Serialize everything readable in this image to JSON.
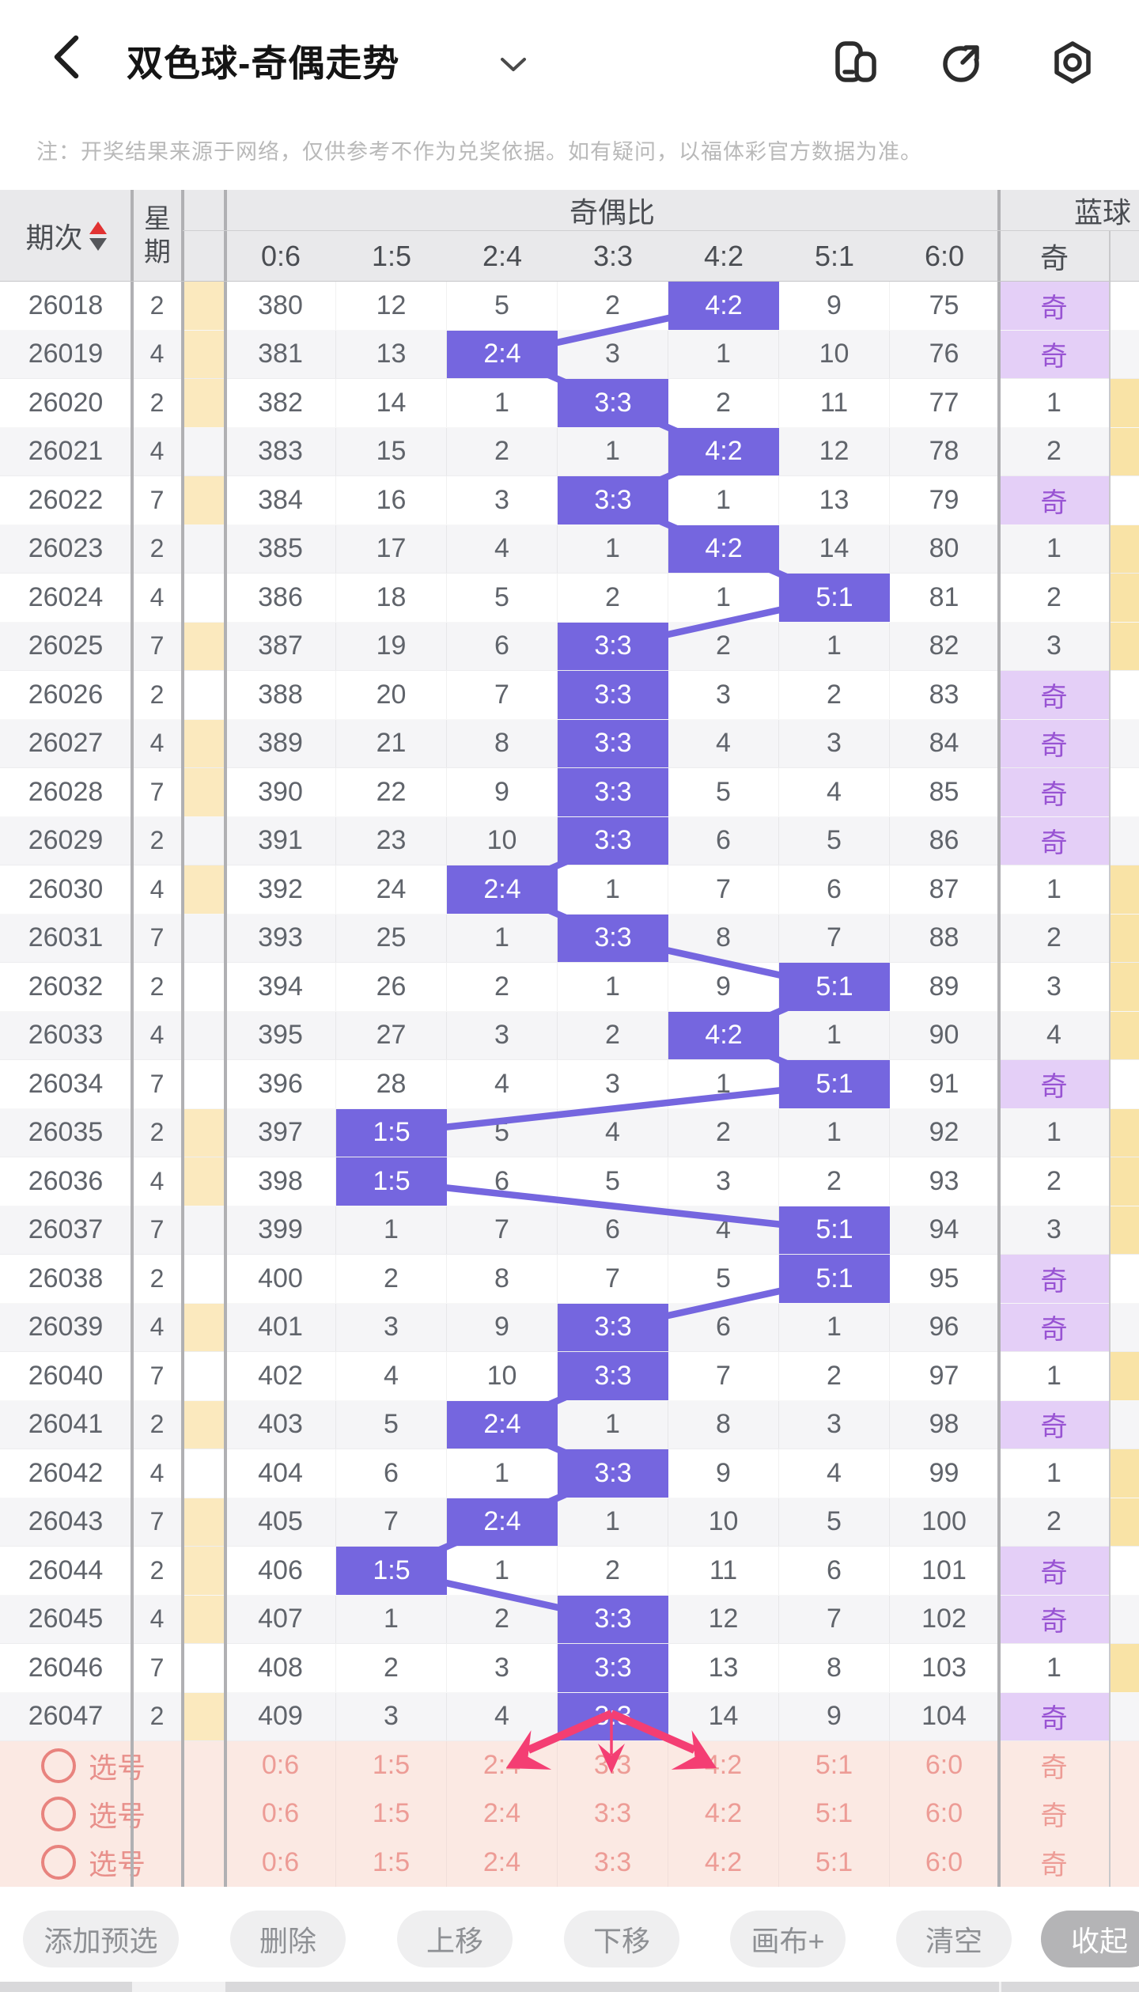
{
  "nav": {
    "title": "双色球-奇偶走势"
  },
  "notice": "注：开奖结果来源于网络，仅供参考不作为兑奖依据。如有疑问，以福体彩官方数据为准。",
  "table": {
    "headers": {
      "period": "期次",
      "week": "星期",
      "ratio_group": "奇偶比",
      "blue_group": "蓝球",
      "ratio_cols": [
        "0:6",
        "1:5",
        "2:4",
        "3:3",
        "4:2",
        "5:1",
        "6:0"
      ],
      "blue_odd": "奇"
    },
    "rows": [
      {
        "period": "26018",
        "week": "2",
        "marker": true,
        "cells": [
          "380",
          "12",
          "5",
          "2",
          "4:2",
          "9",
          "75"
        ],
        "hl": 4,
        "blue": "奇"
      },
      {
        "period": "26019",
        "week": "4",
        "marker": true,
        "cells": [
          "381",
          "13",
          "2:4",
          "3",
          "1",
          "10",
          "76"
        ],
        "hl": 2,
        "blue": "奇"
      },
      {
        "period": "26020",
        "week": "2",
        "marker": true,
        "cells": [
          "382",
          "14",
          "1",
          "3:3",
          "2",
          "11",
          "77"
        ],
        "hl": 3,
        "blue": "1"
      },
      {
        "period": "26021",
        "week": "4",
        "marker": false,
        "cells": [
          "383",
          "15",
          "2",
          "1",
          "4:2",
          "12",
          "78"
        ],
        "hl": 4,
        "blue": "2"
      },
      {
        "period": "26022",
        "week": "7",
        "marker": true,
        "cells": [
          "384",
          "16",
          "3",
          "3:3",
          "1",
          "13",
          "79"
        ],
        "hl": 3,
        "blue": "奇"
      },
      {
        "period": "26023",
        "week": "2",
        "marker": false,
        "cells": [
          "385",
          "17",
          "4",
          "1",
          "4:2",
          "14",
          "80"
        ],
        "hl": 4,
        "blue": "1"
      },
      {
        "period": "26024",
        "week": "4",
        "marker": false,
        "cells": [
          "386",
          "18",
          "5",
          "2",
          "1",
          "5:1",
          "81"
        ],
        "hl": 5,
        "blue": "2"
      },
      {
        "period": "26025",
        "week": "7",
        "marker": true,
        "cells": [
          "387",
          "19",
          "6",
          "3:3",
          "2",
          "1",
          "82"
        ],
        "hl": 3,
        "blue": "3"
      },
      {
        "period": "26026",
        "week": "2",
        "marker": false,
        "cells": [
          "388",
          "20",
          "7",
          "3:3",
          "3",
          "2",
          "83"
        ],
        "hl": 3,
        "blue": "奇"
      },
      {
        "period": "26027",
        "week": "4",
        "marker": true,
        "cells": [
          "389",
          "21",
          "8",
          "3:3",
          "4",
          "3",
          "84"
        ],
        "hl": 3,
        "blue": "奇"
      },
      {
        "period": "26028",
        "week": "7",
        "marker": true,
        "cells": [
          "390",
          "22",
          "9",
          "3:3",
          "5",
          "4",
          "85"
        ],
        "hl": 3,
        "blue": "奇"
      },
      {
        "period": "26029",
        "week": "2",
        "marker": false,
        "cells": [
          "391",
          "23",
          "10",
          "3:3",
          "6",
          "5",
          "86"
        ],
        "hl": 3,
        "blue": "奇"
      },
      {
        "period": "26030",
        "week": "4",
        "marker": true,
        "cells": [
          "392",
          "24",
          "2:4",
          "1",
          "7",
          "6",
          "87"
        ],
        "hl": 2,
        "blue": "1"
      },
      {
        "period": "26031",
        "week": "7",
        "marker": false,
        "cells": [
          "393",
          "25",
          "1",
          "3:3",
          "8",
          "7",
          "88"
        ],
        "hl": 3,
        "blue": "2"
      },
      {
        "period": "26032",
        "week": "2",
        "marker": false,
        "cells": [
          "394",
          "26",
          "2",
          "1",
          "9",
          "5:1",
          "89"
        ],
        "hl": 5,
        "blue": "3"
      },
      {
        "period": "26033",
        "week": "4",
        "marker": false,
        "cells": [
          "395",
          "27",
          "3",
          "2",
          "4:2",
          "1",
          "90"
        ],
        "hl": 4,
        "blue": "4"
      },
      {
        "period": "26034",
        "week": "7",
        "marker": false,
        "cells": [
          "396",
          "28",
          "4",
          "3",
          "1",
          "5:1",
          "91"
        ],
        "hl": 5,
        "blue": "奇"
      },
      {
        "period": "26035",
        "week": "2",
        "marker": true,
        "cells": [
          "397",
          "1:5",
          "5",
          "4",
          "2",
          "1",
          "92"
        ],
        "hl": 1,
        "blue": "1"
      },
      {
        "period": "26036",
        "week": "4",
        "marker": true,
        "cells": [
          "398",
          "1:5",
          "6",
          "5",
          "3",
          "2",
          "93"
        ],
        "hl": 1,
        "blue": "2"
      },
      {
        "period": "26037",
        "week": "7",
        "marker": false,
        "cells": [
          "399",
          "1",
          "7",
          "6",
          "4",
          "5:1",
          "94"
        ],
        "hl": 5,
        "blue": "3"
      },
      {
        "period": "26038",
        "week": "2",
        "marker": false,
        "cells": [
          "400",
          "2",
          "8",
          "7",
          "5",
          "5:1",
          "95"
        ],
        "hl": 5,
        "blue": "奇"
      },
      {
        "period": "26039",
        "week": "4",
        "marker": true,
        "cells": [
          "401",
          "3",
          "9",
          "3:3",
          "6",
          "1",
          "96"
        ],
        "hl": 3,
        "blue": "奇"
      },
      {
        "period": "26040",
        "week": "7",
        "marker": false,
        "cells": [
          "402",
          "4",
          "10",
          "3:3",
          "7",
          "2",
          "97"
        ],
        "hl": 3,
        "blue": "1"
      },
      {
        "period": "26041",
        "week": "2",
        "marker": true,
        "cells": [
          "403",
          "5",
          "2:4",
          "1",
          "8",
          "3",
          "98"
        ],
        "hl": 2,
        "blue": "奇"
      },
      {
        "period": "26042",
        "week": "4",
        "marker": false,
        "cells": [
          "404",
          "6",
          "1",
          "3:3",
          "9",
          "4",
          "99"
        ],
        "hl": 3,
        "blue": "1"
      },
      {
        "period": "26043",
        "week": "7",
        "marker": true,
        "cells": [
          "405",
          "7",
          "2:4",
          "1",
          "10",
          "5",
          "100"
        ],
        "hl": 2,
        "blue": "2"
      },
      {
        "period": "26044",
        "week": "2",
        "marker": true,
        "cells": [
          "406",
          "1:5",
          "1",
          "2",
          "11",
          "6",
          "101"
        ],
        "hl": 1,
        "blue": "奇"
      },
      {
        "period": "26045",
        "week": "4",
        "marker": true,
        "cells": [
          "407",
          "1",
          "2",
          "3:3",
          "12",
          "7",
          "102"
        ],
        "hl": 3,
        "blue": "奇"
      },
      {
        "period": "26046",
        "week": "7",
        "marker": false,
        "cells": [
          "408",
          "2",
          "3",
          "3:3",
          "13",
          "8",
          "103"
        ],
        "hl": 3,
        "blue": "1"
      },
      {
        "period": "26047",
        "week": "2",
        "marker": true,
        "cells": [
          "409",
          "3",
          "4",
          "3:3",
          "14",
          "9",
          "104"
        ],
        "hl": 3,
        "blue": "奇"
      }
    ]
  },
  "selection": {
    "label": "选号",
    "rows": [
      {
        "values": [
          "0:6",
          "1:5",
          "2:4",
          "3:3",
          "4:2",
          "5:1",
          "6:0"
        ],
        "blue": "奇"
      },
      {
        "values": [
          "0:6",
          "1:5",
          "2:4",
          "3:3",
          "4:2",
          "5:1",
          "6:0"
        ],
        "blue": "奇"
      },
      {
        "values": [
          "0:6",
          "1:5",
          "2:4",
          "3:3",
          "4:2",
          "5:1",
          "6:0"
        ],
        "blue": "奇"
      }
    ]
  },
  "toolbar": {
    "buttons": [
      "添加预选",
      "删除",
      "上移",
      "下移",
      "画布+",
      "清空",
      "收起"
    ]
  },
  "colors": {
    "accent_purple": "#7566DF",
    "lavender_bg": "#E4CFF7",
    "lavender_text": "#9853D3",
    "marker_yellow": "#FBE9BE",
    "blue_even_yellow": "#F9E3A6",
    "selection_bg": "#FBE9E3",
    "selection_text": "#ED9C96",
    "arrow_pink": "#F43E73",
    "header_bg": "#E9E9EB",
    "stripe": "#F5F5F7"
  }
}
